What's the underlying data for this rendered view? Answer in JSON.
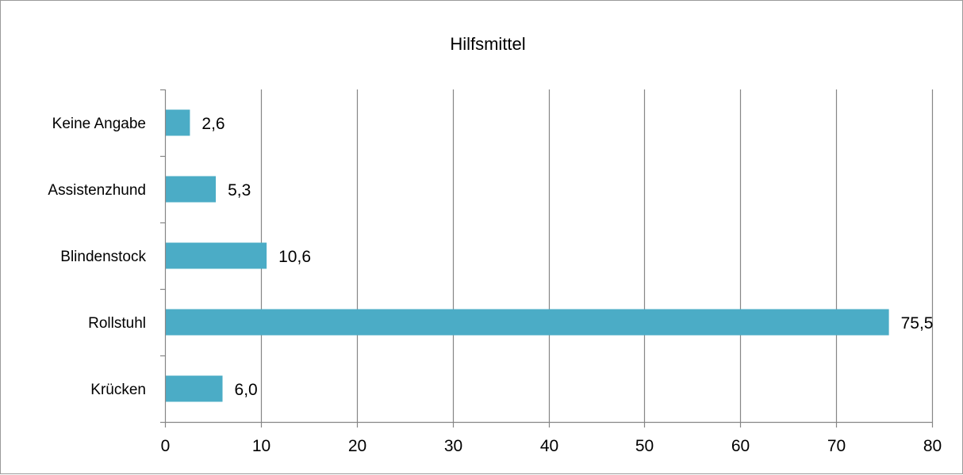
{
  "chart_data": {
    "type": "bar",
    "orientation": "horizontal",
    "title": "Hilfsmittel",
    "xlabel": "",
    "ylabel": "",
    "categories": [
      "Keine Angabe",
      "Assistenzhund",
      "Blindenstock",
      "Rollstuhl",
      "Krücken"
    ],
    "values": [
      2.6,
      5.3,
      10.6,
      75.5,
      6.0
    ],
    "data_labels": [
      "2,6",
      "5,3",
      "10,6",
      "75,5",
      "6,0"
    ],
    "xlim": [
      0,
      80
    ],
    "x_ticks": [
      0,
      10,
      20,
      30,
      40,
      50,
      60,
      70,
      80
    ],
    "x_tick_labels": [
      "0",
      "10",
      "20",
      "30",
      "40",
      "50",
      "60",
      "70",
      "80"
    ],
    "grid": "vertical",
    "legend": "none",
    "bar_color": "#4bacc6",
    "gridline_color": "#868686",
    "axis_color": "#868686"
  }
}
